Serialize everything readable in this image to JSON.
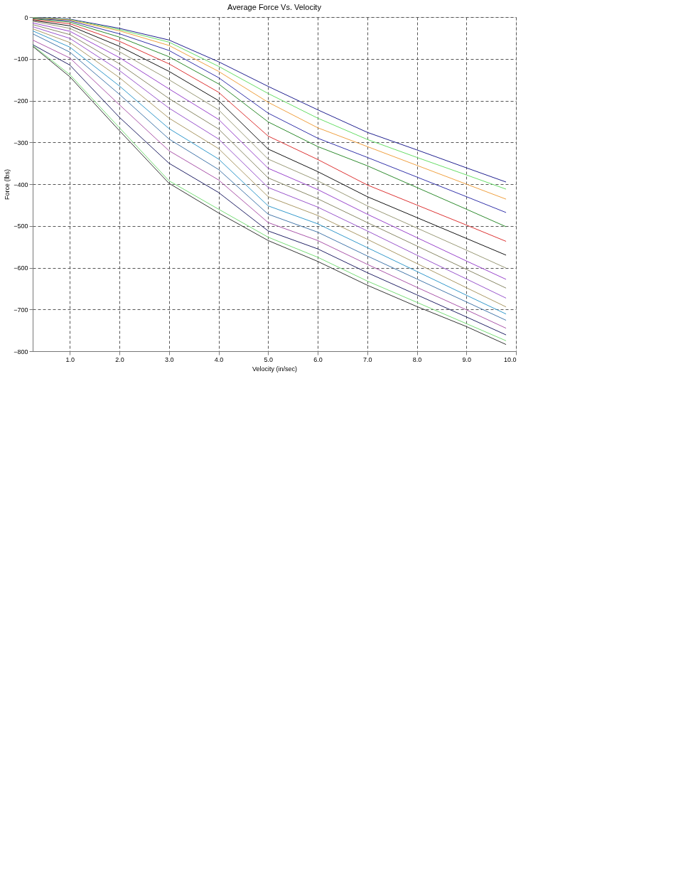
{
  "chart_data": {
    "type": "line",
    "title": "Average Force Vs. Velocity",
    "xlabel": "Velocity (in/sec)",
    "ylabel": "Force (lbs)",
    "x": [
      0.25,
      1,
      2,
      3,
      4,
      5,
      6,
      7,
      8,
      9,
      9.8
    ],
    "xlim": [
      0.25,
      10.0
    ],
    "xticks": [
      {
        "value": 1,
        "label": "1.0"
      },
      {
        "value": 2,
        "label": "2.0"
      },
      {
        "value": 3,
        "label": "3.0"
      },
      {
        "value": 4,
        "label": "4.0"
      },
      {
        "value": 5,
        "label": "5.0"
      },
      {
        "value": 6,
        "label": "6.0"
      },
      {
        "value": 7,
        "label": "7.0"
      },
      {
        "value": 8,
        "label": "8.0"
      },
      {
        "value": 9,
        "label": "9.0"
      },
      {
        "value": 10,
        "label": "10.0"
      }
    ],
    "ylim": [
      -800,
      0
    ],
    "yticks": [
      -800,
      -700,
      -600,
      -500,
      -400,
      -300,
      -200,
      -100,
      0
    ],
    "grid": true,
    "legend": false,
    "line_style": "solid",
    "marker": "none",
    "series": [
      {
        "color": "#1f1f8f",
        "values": [
          0,
          -5,
          -27,
          -55,
          -107,
          -166,
          -222,
          -276,
          -318,
          -361,
          -395
        ]
      },
      {
        "color": "#66dd66",
        "values": [
          -1,
          -6,
          -30,
          -60,
          -118,
          -183,
          -242,
          -293,
          -336,
          -378,
          -412
        ]
      },
      {
        "color": "#f0a040",
        "values": [
          -2,
          -7,
          -33,
          -68,
          -130,
          -204,
          -265,
          -310,
          -355,
          -400,
          -436
        ]
      },
      {
        "color": "#3333aa",
        "values": [
          -3,
          -9,
          -40,
          -80,
          -145,
          -230,
          -290,
          -336,
          -383,
          -430,
          -468
        ]
      },
      {
        "color": "#2e8b2e",
        "values": [
          -4,
          -12,
          -48,
          -95,
          -160,
          -251,
          -310,
          -356,
          -408,
          -460,
          -502
        ]
      },
      {
        "color": "#dd3333",
        "values": [
          -6,
          -16,
          -58,
          -112,
          -180,
          -285,
          -341,
          -402,
          -450,
          -498,
          -537
        ]
      },
      {
        "color": "#111111",
        "values": [
          -8,
          -21,
          -70,
          -130,
          -200,
          -316,
          -370,
          -430,
          -480,
          -530,
          -570
        ]
      },
      {
        "color": "#999977",
        "values": [
          -10,
          -27,
          -83,
          -150,
          -222,
          -340,
          -392,
          -452,
          -505,
          -558,
          -601
        ]
      },
      {
        "color": "#9944cc",
        "values": [
          -14,
          -34,
          -97,
          -172,
          -245,
          -362,
          -413,
          -472,
          -528,
          -584,
          -628
        ]
      },
      {
        "color": "#888866",
        "values": [
          -18,
          -42,
          -112,
          -195,
          -268,
          -385,
          -435,
          -492,
          -548,
          -604,
          -649
        ]
      },
      {
        "color": "#9955cc",
        "values": [
          -23,
          -51,
          -128,
          -218,
          -292,
          -408,
          -455,
          -512,
          -570,
          -627,
          -673
        ]
      },
      {
        "color": "#aa9966",
        "values": [
          -28,
          -61,
          -145,
          -242,
          -315,
          -430,
          -475,
          -532,
          -590,
          -648,
          -694
        ]
      },
      {
        "color": "#3399cc",
        "values": [
          -33,
          -72,
          -165,
          -267,
          -340,
          -452,
          -495,
          -552,
          -609,
          -666,
          -711
        ]
      },
      {
        "color": "#4477aa",
        "values": [
          -40,
          -84,
          -185,
          -292,
          -365,
          -472,
          -515,
          -572,
          -627,
          -682,
          -726
        ]
      },
      {
        "color": "#aa55aa",
        "values": [
          -55,
          -98,
          -210,
          -320,
          -390,
          -492,
          -535,
          -592,
          -647,
          -701,
          -745
        ]
      },
      {
        "color": "#222266",
        "values": [
          -66,
          -115,
          -240,
          -350,
          -420,
          -512,
          -555,
          -612,
          -665,
          -718,
          -761
        ]
      },
      {
        "color": "#77dd77",
        "values": [
          -68,
          -138,
          -265,
          -392,
          -460,
          -527,
          -575,
          -632,
          -683,
          -734,
          -775
        ]
      },
      {
        "color": "#333333",
        "values": [
          -70,
          -143,
          -272,
          -398,
          -469,
          -535,
          -585,
          -642,
          -693,
          -741,
          -784
        ]
      }
    ]
  }
}
